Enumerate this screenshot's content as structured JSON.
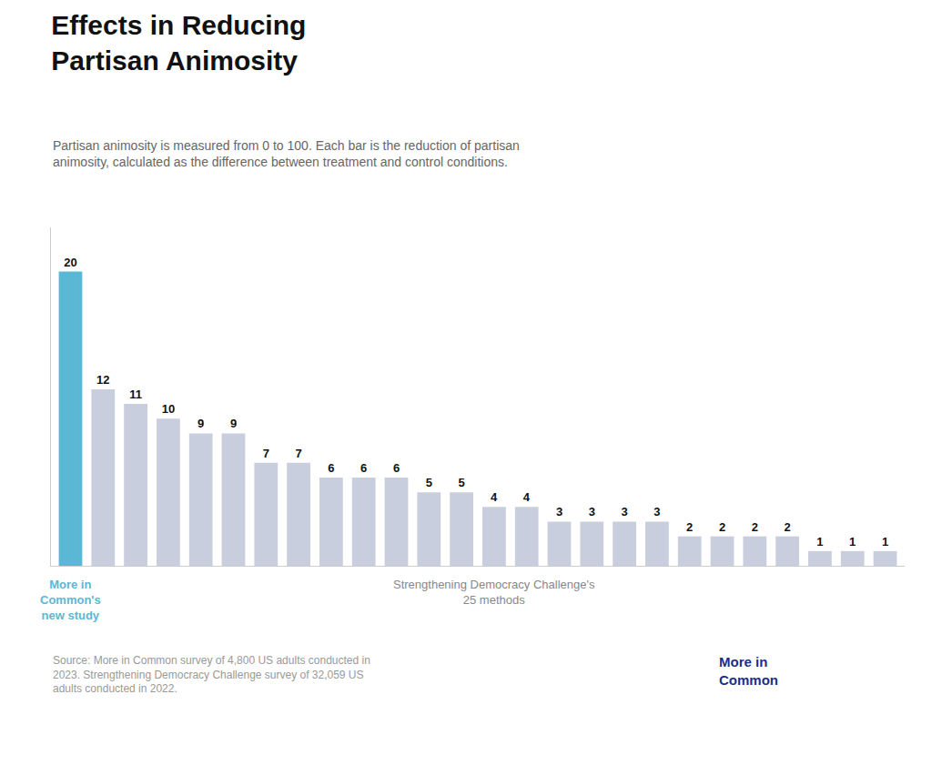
{
  "chart_data": {
    "type": "bar",
    "title": "Effects in Reducing\nPartisan Animosity",
    "subtitle": "Partisan animosity is measured from 0 to 100. Each bar is the reduction of partisan\nanimosity, calculated as the difference between treatment and control conditions.",
    "categories": [
      null,
      null,
      null,
      null,
      null,
      null,
      null,
      null,
      null,
      null,
      null,
      null,
      null,
      null,
      null,
      null,
      null,
      null,
      null,
      null,
      null,
      null,
      null,
      null,
      null,
      null
    ],
    "values": [
      20,
      12,
      11,
      10,
      9,
      9,
      7,
      7,
      6,
      6,
      6,
      5,
      5,
      4,
      4,
      3,
      3,
      3,
      3,
      2,
      2,
      2,
      2,
      1,
      1,
      1
    ],
    "colors": [
      "#5BB8D4",
      "#C8CEDD",
      "#C8CEDD",
      "#C8CEDD",
      "#C8CEDD",
      "#C8CEDD",
      "#C8CEDD",
      "#C8CEDD",
      "#C8CEDD",
      "#C8CEDD",
      "#C8CEDD",
      "#C8CEDD",
      "#C8CEDD",
      "#C8CEDD",
      "#C8CEDD",
      "#C8CEDD",
      "#C8CEDD",
      "#C8CEDD",
      "#C8CEDD",
      "#C8CEDD",
      "#C8CEDD",
      "#C8CEDD",
      "#C8CEDD",
      "#C8CEDD",
      "#C8CEDD",
      "#C8CEDD"
    ],
    "ylim": [
      0,
      23
    ],
    "data_labels": true,
    "tick_labels": false,
    "grid": false,
    "annotations": [
      "More in\nCommon's\nnew study",
      "Strengthening Democracy Challenge's\n25 methods",
      "Source: More in Common survey of 4,800 US adults conducted in\n2023. Strengthening Democracy Challenge survey of 32,059 US\nadults conducted in 2022.",
      "More in\nCommon"
    ]
  }
}
